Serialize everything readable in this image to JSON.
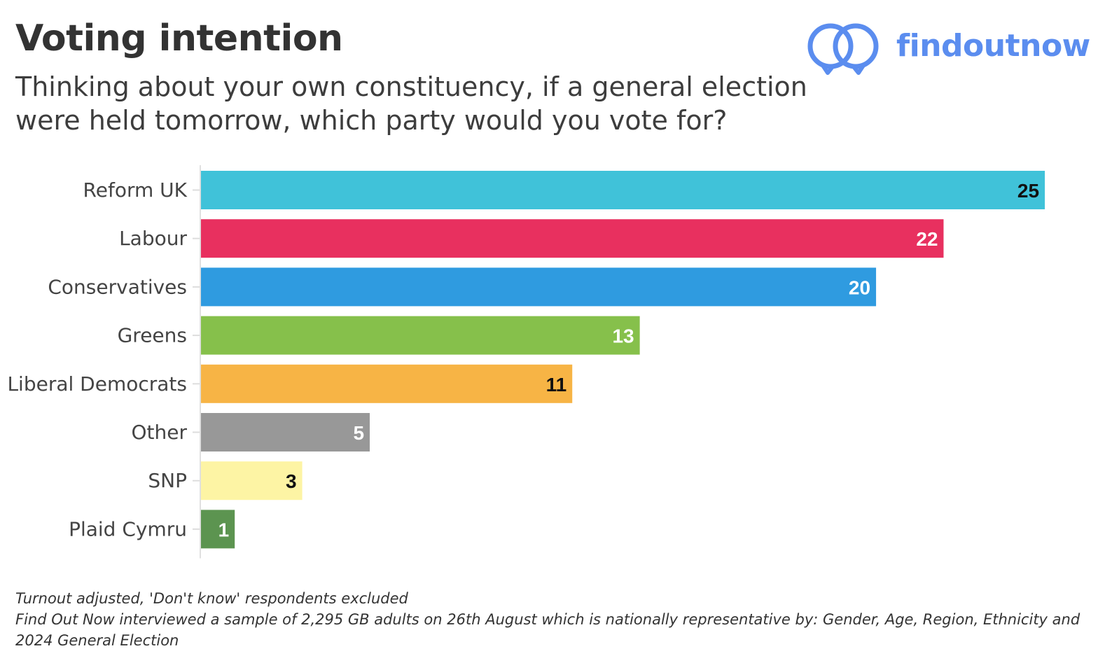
{
  "header": {
    "title": "Voting intention",
    "subtitle": "Thinking about your own constituency, if a general election were held tomorrow, which party would you vote for?"
  },
  "logo": {
    "text": "findoutnow",
    "icon": "interlocking-rings-icon",
    "color": "#5b8def"
  },
  "chart_data": {
    "type": "bar",
    "orientation": "horizontal",
    "categories": [
      "Reform UK",
      "Labour",
      "Conservatives",
      "Greens",
      "Liberal Democrats",
      "Other",
      "SNP",
      "Plaid Cymru"
    ],
    "values": [
      25,
      22,
      20,
      13,
      11,
      5,
      3,
      1
    ],
    "colors": [
      "#40c2d9",
      "#e8305f",
      "#2f9be0",
      "#86c04b",
      "#f7b445",
      "#989898",
      "#fdf4a4",
      "#5c9450"
    ],
    "label_colors": [
      "#111111",
      "#ffffff",
      "#ffffff",
      "#ffffff",
      "#111111",
      "#ffffff",
      "#111111",
      "#ffffff"
    ],
    "xlim": [
      0,
      25.6
    ],
    "grid": false,
    "legend": "none",
    "title": "Voting intention",
    "xlabel": "",
    "ylabel": ""
  },
  "footnotes": [
    "Turnout adjusted, 'Don't know' respondents excluded",
    "Find Out Now interviewed a sample of 2,295 GB adults on 26th August which is nationally representative by: Gender, Age, Region, Ethnicity and 2024 General Election"
  ]
}
